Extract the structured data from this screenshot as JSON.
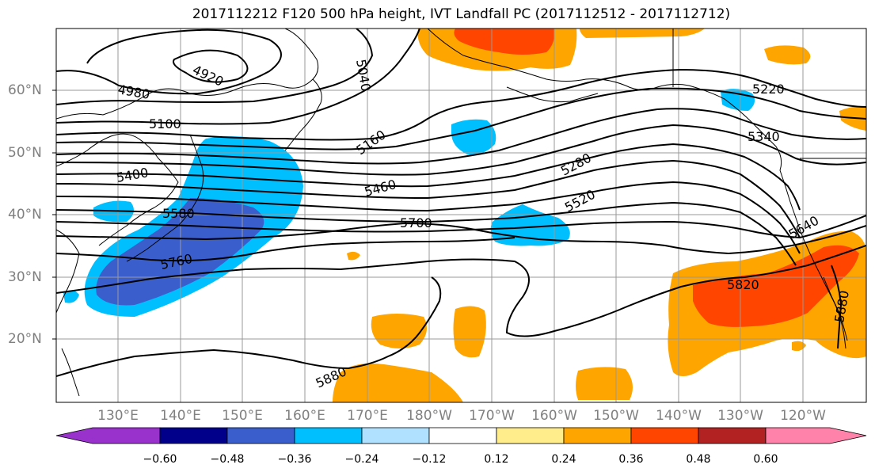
{
  "title": "2017112212 F120 500 hPa height, IVT Landfall PC (2017112512 - 2017112712)",
  "map": {
    "lat_labels": [
      "60°N",
      "50°N",
      "40°N",
      "30°N",
      "20°N"
    ],
    "lon_labels": [
      "130°E",
      "140°E",
      "150°E",
      "160°E",
      "170°E",
      "180°W",
      "170°W",
      "160°W",
      "150°W",
      "140°W",
      "130°W",
      "120°W"
    ],
    "contour_labels": [
      "4920",
      "4980",
      "5040",
      "5100",
      "5160",
      "5220",
      "5280",
      "5340",
      "5400",
      "5460",
      "5520",
      "5580",
      "5640",
      "5700",
      "5760",
      "5820",
      "5880",
      "5880"
    ]
  },
  "colorbar": {
    "colors": [
      "#9932cc",
      "#00008b",
      "#3a5fcd",
      "#00bfff",
      "#b0e2ff",
      "#ffffff",
      "#ffec8b",
      "#ffa500",
      "#ff4500",
      "#b22222",
      "#ff82ab"
    ],
    "tick_labels": [
      "−0.60",
      "−0.48",
      "−0.36",
      "−0.24",
      "−0.12",
      "0.12",
      "0.24",
      "0.36",
      "0.48",
      "0.60"
    ]
  }
}
